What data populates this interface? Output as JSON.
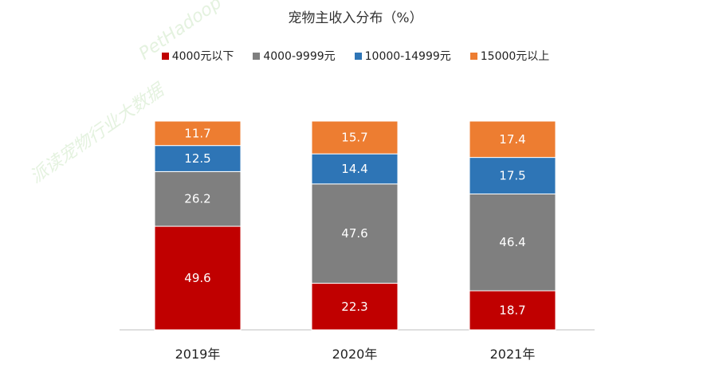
{
  "chart_data": {
    "type": "bar",
    "stacked": true,
    "title": "宠物主收入分布（%）",
    "categories": [
      "2019年",
      "2020年",
      "2021年"
    ],
    "series": [
      {
        "name": "4000元以下",
        "color": "#c00000",
        "values": [
          49.6,
          22.3,
          18.7
        ]
      },
      {
        "name": "4000-9999元",
        "color": "#7f7f7f",
        "values": [
          26.2,
          47.6,
          46.4
        ]
      },
      {
        "name": "10000-14999元",
        "color": "#2e75b6",
        "values": [
          12.5,
          14.4,
          17.5
        ]
      },
      {
        "name": "15000元以上",
        "color": "#ed7d31",
        "values": [
          11.7,
          15.7,
          17.4
        ]
      }
    ],
    "ylim": [
      0,
      100
    ],
    "legend_position": "top",
    "grid": false
  },
  "watermark": {
    "brand": "PetHadoop",
    "sub": "派读宠物行业大数据"
  }
}
